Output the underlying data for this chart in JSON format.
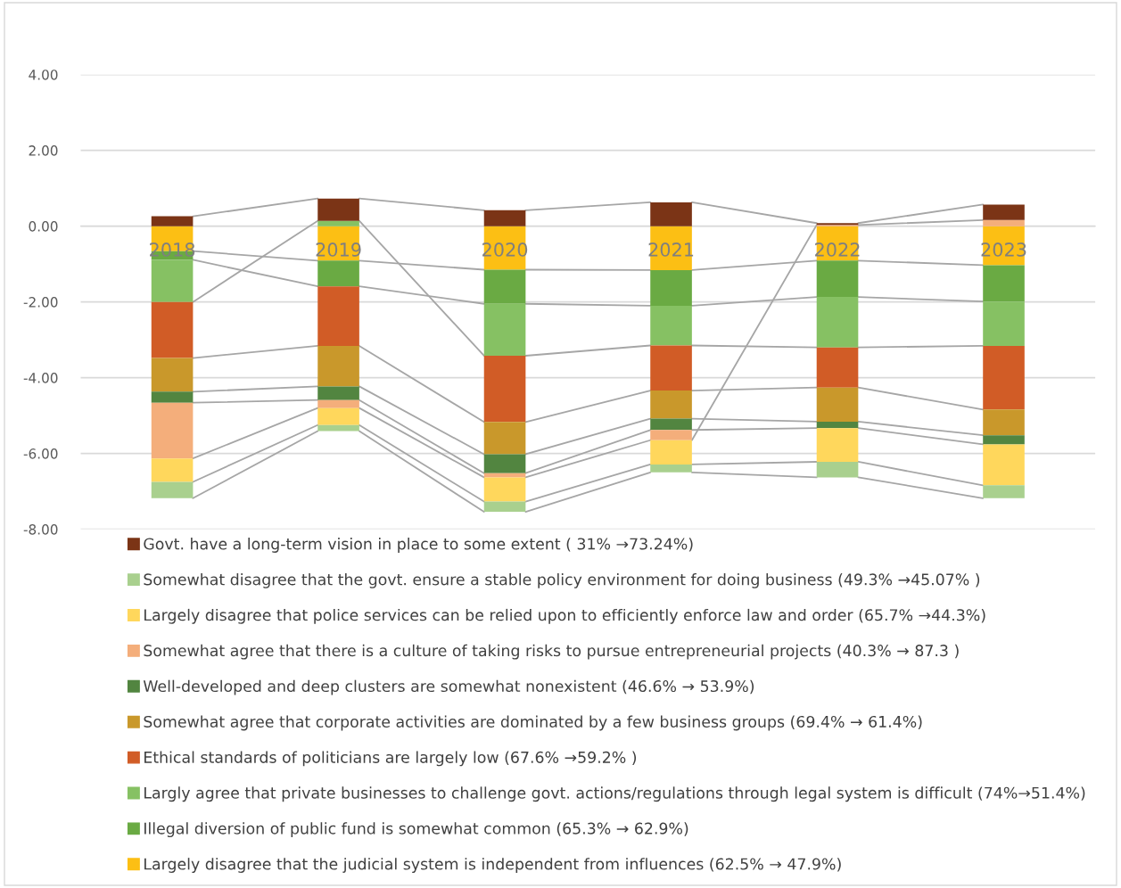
{
  "chart_data": {
    "type": "bar",
    "stacked": true,
    "categories": [
      "2018",
      "2019",
      "2020",
      "2021",
      "2022",
      "2023"
    ],
    "series": [
      {
        "name": "Largely disagree that the judicial system is independent from influences (62.5% → 47.9%)",
        "color": "#fcbf14",
        "values": [
          -0.66,
          -0.91,
          -1.15,
          -1.16,
          -0.91,
          -1.03
        ]
      },
      {
        "name": "Illegal diversion of public fund is somewhat common (65.3% → 62.9%)",
        "color": "#6aaa43",
        "values": [
          -0.23,
          -0.68,
          -0.9,
          -0.94,
          -0.96,
          -0.96
        ]
      },
      {
        "name": "Largly agree that private businesses to challenge govt. actions/regulations through legal system is difficult (74%→51.4%)",
        "color": "#86c163",
        "values": [
          -1.11,
          0.14,
          -1.37,
          -1.05,
          -1.33,
          -1.17
        ]
      },
      {
        "name": "Ethical standards of politicians are largely low (67.6% →59.2% )",
        "color": "#d15c26",
        "values": [
          -1.48,
          -1.57,
          -1.75,
          -1.19,
          -1.06,
          -1.68
        ]
      },
      {
        "name": "Somewhat agree that corporate activities are dominated by a few business groups (69.4% → 61.4%)",
        "color": "#c9982b",
        "values": [
          -0.89,
          -1.07,
          -0.85,
          -0.74,
          -0.9,
          -0.68
        ]
      },
      {
        "name": "Well-developed and deep clusters are somewhat nonexistent (46.6% → 53.9%)",
        "color": "#528540",
        "values": [
          -0.29,
          -0.36,
          -0.5,
          -0.3,
          -0.17,
          -0.24
        ]
      },
      {
        "name": "Somewhat agree that there is a culture of taking risks to pursue entrepreneurial projects (40.3% → 87.3 )",
        "color": "#f4ae7b",
        "values": [
          -1.47,
          -0.21,
          -0.11,
          -0.27,
          0.03,
          0.16
        ]
      },
      {
        "name": "Largely disagree that police services can be relied upon to efficiently enforce law and order (65.7% →44.3%)",
        "color": "#ffd75c",
        "values": [
          -0.62,
          -0.45,
          -0.64,
          -0.64,
          -0.89,
          -1.08
        ]
      },
      {
        "name": "Somewhat disagree that the govt. ensure a stable policy environment for doing business (49.3% →45.07% )",
        "color": "#a9d08e",
        "values": [
          -0.43,
          -0.16,
          -0.27,
          -0.21,
          -0.41,
          -0.34
        ]
      },
      {
        "name": "Govt. have a long-term vision in place to some extent ( 31% →73.24%)",
        "color": "#7b3416",
        "values": [
          0.26,
          0.59,
          0.42,
          0.63,
          0.05,
          0.41
        ]
      }
    ],
    "ylim": [
      -8,
      4
    ],
    "yticks": [
      {
        "value": -8,
        "label": "-8.00"
      },
      {
        "value": -6,
        "label": "-6.00"
      },
      {
        "value": -4,
        "label": "-4.00"
      },
      {
        "value": -2,
        "label": "-2.00"
      },
      {
        "value": 0,
        "label": "0.00"
      },
      {
        "value": 2,
        "label": "2.00"
      },
      {
        "value": 4,
        "label": "4.00"
      }
    ],
    "grid": "y",
    "legend": "bottom"
  }
}
